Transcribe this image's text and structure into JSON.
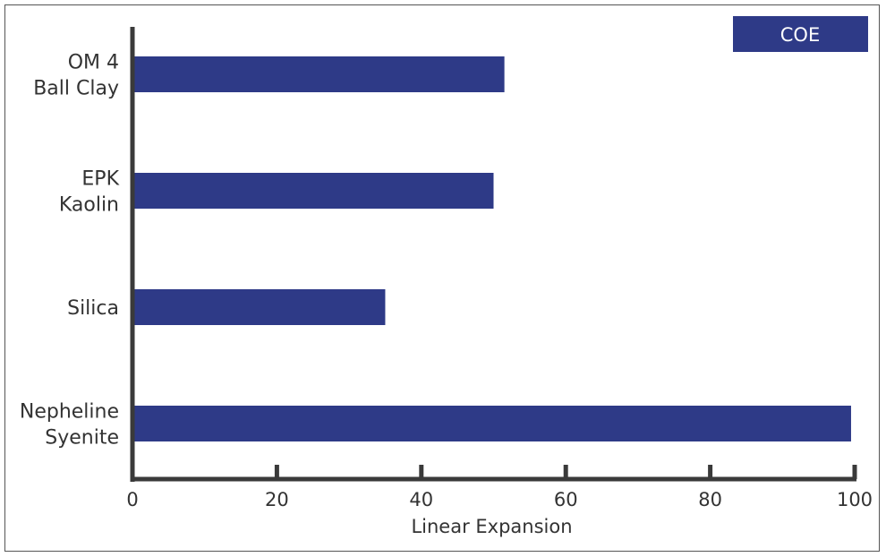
{
  "chart_data": {
    "type": "bar",
    "orientation": "horizontal",
    "categories": [
      [
        "OM 4",
        "Ball Clay"
      ],
      [
        "EPK",
        "Kaolin"
      ],
      [
        "Silica"
      ],
      [
        "Nepheline",
        "Syenite"
      ]
    ],
    "series": [
      {
        "name": "COE",
        "values": [
          51.5,
          50,
          35,
          99.5
        ],
        "color": "#2e3a87"
      }
    ],
    "xlabel": "Linear Expansion",
    "xlim": [
      0,
      100
    ],
    "xticks": [
      0,
      20,
      40,
      60,
      80,
      100
    ],
    "grid": false,
    "legend": "top-right",
    "axis_color": "#3a3a3a"
  }
}
